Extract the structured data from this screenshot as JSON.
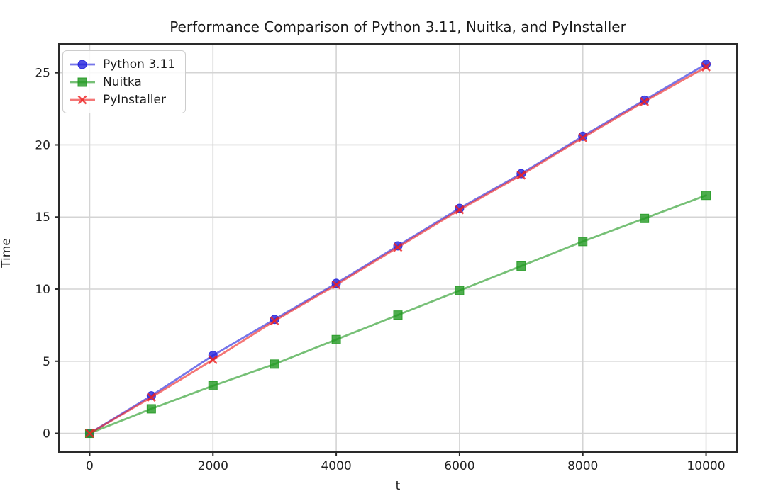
{
  "chart_data": {
    "type": "line",
    "title": "Performance Comparison of Python 3.11, Nuitka, and PyInstaller",
    "xlabel": "t",
    "ylabel": "Time",
    "x": [
      0,
      1000,
      2000,
      3000,
      4000,
      5000,
      6000,
      7000,
      8000,
      9000,
      10000
    ],
    "series": [
      {
        "name": "Python 3.11",
        "marker": "circle",
        "color": "#2222dd",
        "values": [
          0.0,
          2.6,
          5.4,
          7.9,
          10.4,
          13.0,
          15.6,
          18.0,
          20.6,
          23.1,
          25.6
        ]
      },
      {
        "name": "Nuitka",
        "marker": "square",
        "color": "#229922",
        "values": [
          0.0,
          1.7,
          3.3,
          4.8,
          6.5,
          8.2,
          9.9,
          11.6,
          13.3,
          14.9,
          16.5
        ]
      },
      {
        "name": "PyInstaller",
        "marker": "x",
        "color": "#ee2222",
        "values": [
          0.0,
          2.5,
          5.1,
          7.8,
          10.3,
          12.9,
          15.5,
          17.9,
          20.5,
          23.0,
          25.4
        ]
      }
    ],
    "xticks": [
      0,
      2000,
      4000,
      6000,
      8000,
      10000
    ],
    "xtick_labels": [
      "0",
      "2000",
      "4000",
      "6000",
      "8000",
      "10000"
    ],
    "yticks": [
      0,
      5,
      10,
      15,
      20,
      25
    ],
    "ytick_labels": [
      "0",
      "5",
      "10",
      "15",
      "20",
      "25"
    ],
    "xlim": [
      -500,
      10500
    ],
    "ylim": [
      -1.3,
      27.0
    ],
    "grid": true,
    "legend_position": "upper-left",
    "grid_color": "#d4d4d4",
    "spine_color": "#2a2a2a",
    "tick_label_color": "#222222",
    "background_color": "#ffffff"
  }
}
